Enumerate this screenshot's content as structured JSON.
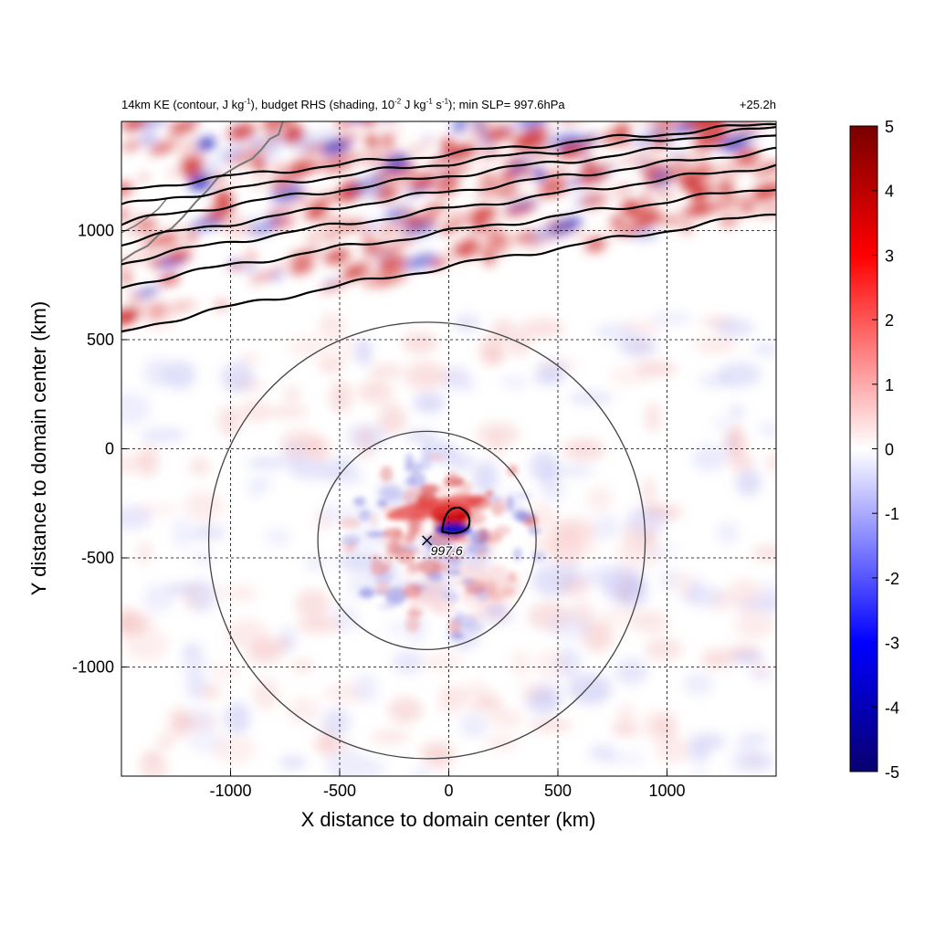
{
  "title": {
    "main_parts": [
      "14km KE (contour, J kg",
      "-1",
      "), budget RHS (shading, 10",
      "-2",
      " J kg",
      "-1",
      " s",
      "-1",
      "); min SLP= 997.6hPa"
    ],
    "time_label": "+25.2h"
  },
  "chart_data": {
    "type": "heatmap",
    "xlabel": "X distance to domain center (km)",
    "ylabel": "Y distance to domain center (km)",
    "xlim": [
      -1500,
      1500
    ],
    "ylim": [
      -1500,
      1500
    ],
    "x_ticks": [
      -1000,
      -500,
      0,
      500,
      1000
    ],
    "y_ticks": [
      -1000,
      -500,
      0,
      500,
      1000
    ],
    "x_tick_labels": [
      "-1000",
      "-500",
      "0",
      "500",
      "1000"
    ],
    "y_tick_labels": [
      "-1000",
      "-500",
      "0",
      "500",
      "1000"
    ],
    "grid": true,
    "colorbar": {
      "range": [
        -5,
        5
      ],
      "ticks": [
        5,
        4,
        3,
        2,
        1,
        0,
        -1,
        -2,
        -3,
        -4,
        -5
      ],
      "tick_labels": [
        "5",
        "4",
        "3",
        "2",
        "1",
        "0",
        "-1",
        "-2",
        "-3",
        "-4",
        "-5"
      ],
      "colormap": [
        "#08006e",
        "#0000ff",
        "#ffffff",
        "#ff0000",
        "#780000"
      ]
    },
    "storm_center": {
      "x": -100,
      "y": -420,
      "label": "997.6"
    },
    "range_rings_km": [
      500,
      1000
    ],
    "ke_contours": [
      {
        "y_at_xmin": 530,
        "y_at_xmax": 1080
      },
      {
        "y_at_xmin": 740,
        "y_at_xmax": 1200
      },
      {
        "y_at_xmin": 850,
        "y_at_xmax": 1300
      },
      {
        "y_at_xmin": 940,
        "y_at_xmax": 1370
      },
      {
        "y_at_xmin": 1030,
        "y_at_xmax": 1430
      },
      {
        "y_at_xmin": 1110,
        "y_at_xmax": 1470
      },
      {
        "y_at_xmin": 1180,
        "y_at_xmax": 1490
      }
    ]
  }
}
